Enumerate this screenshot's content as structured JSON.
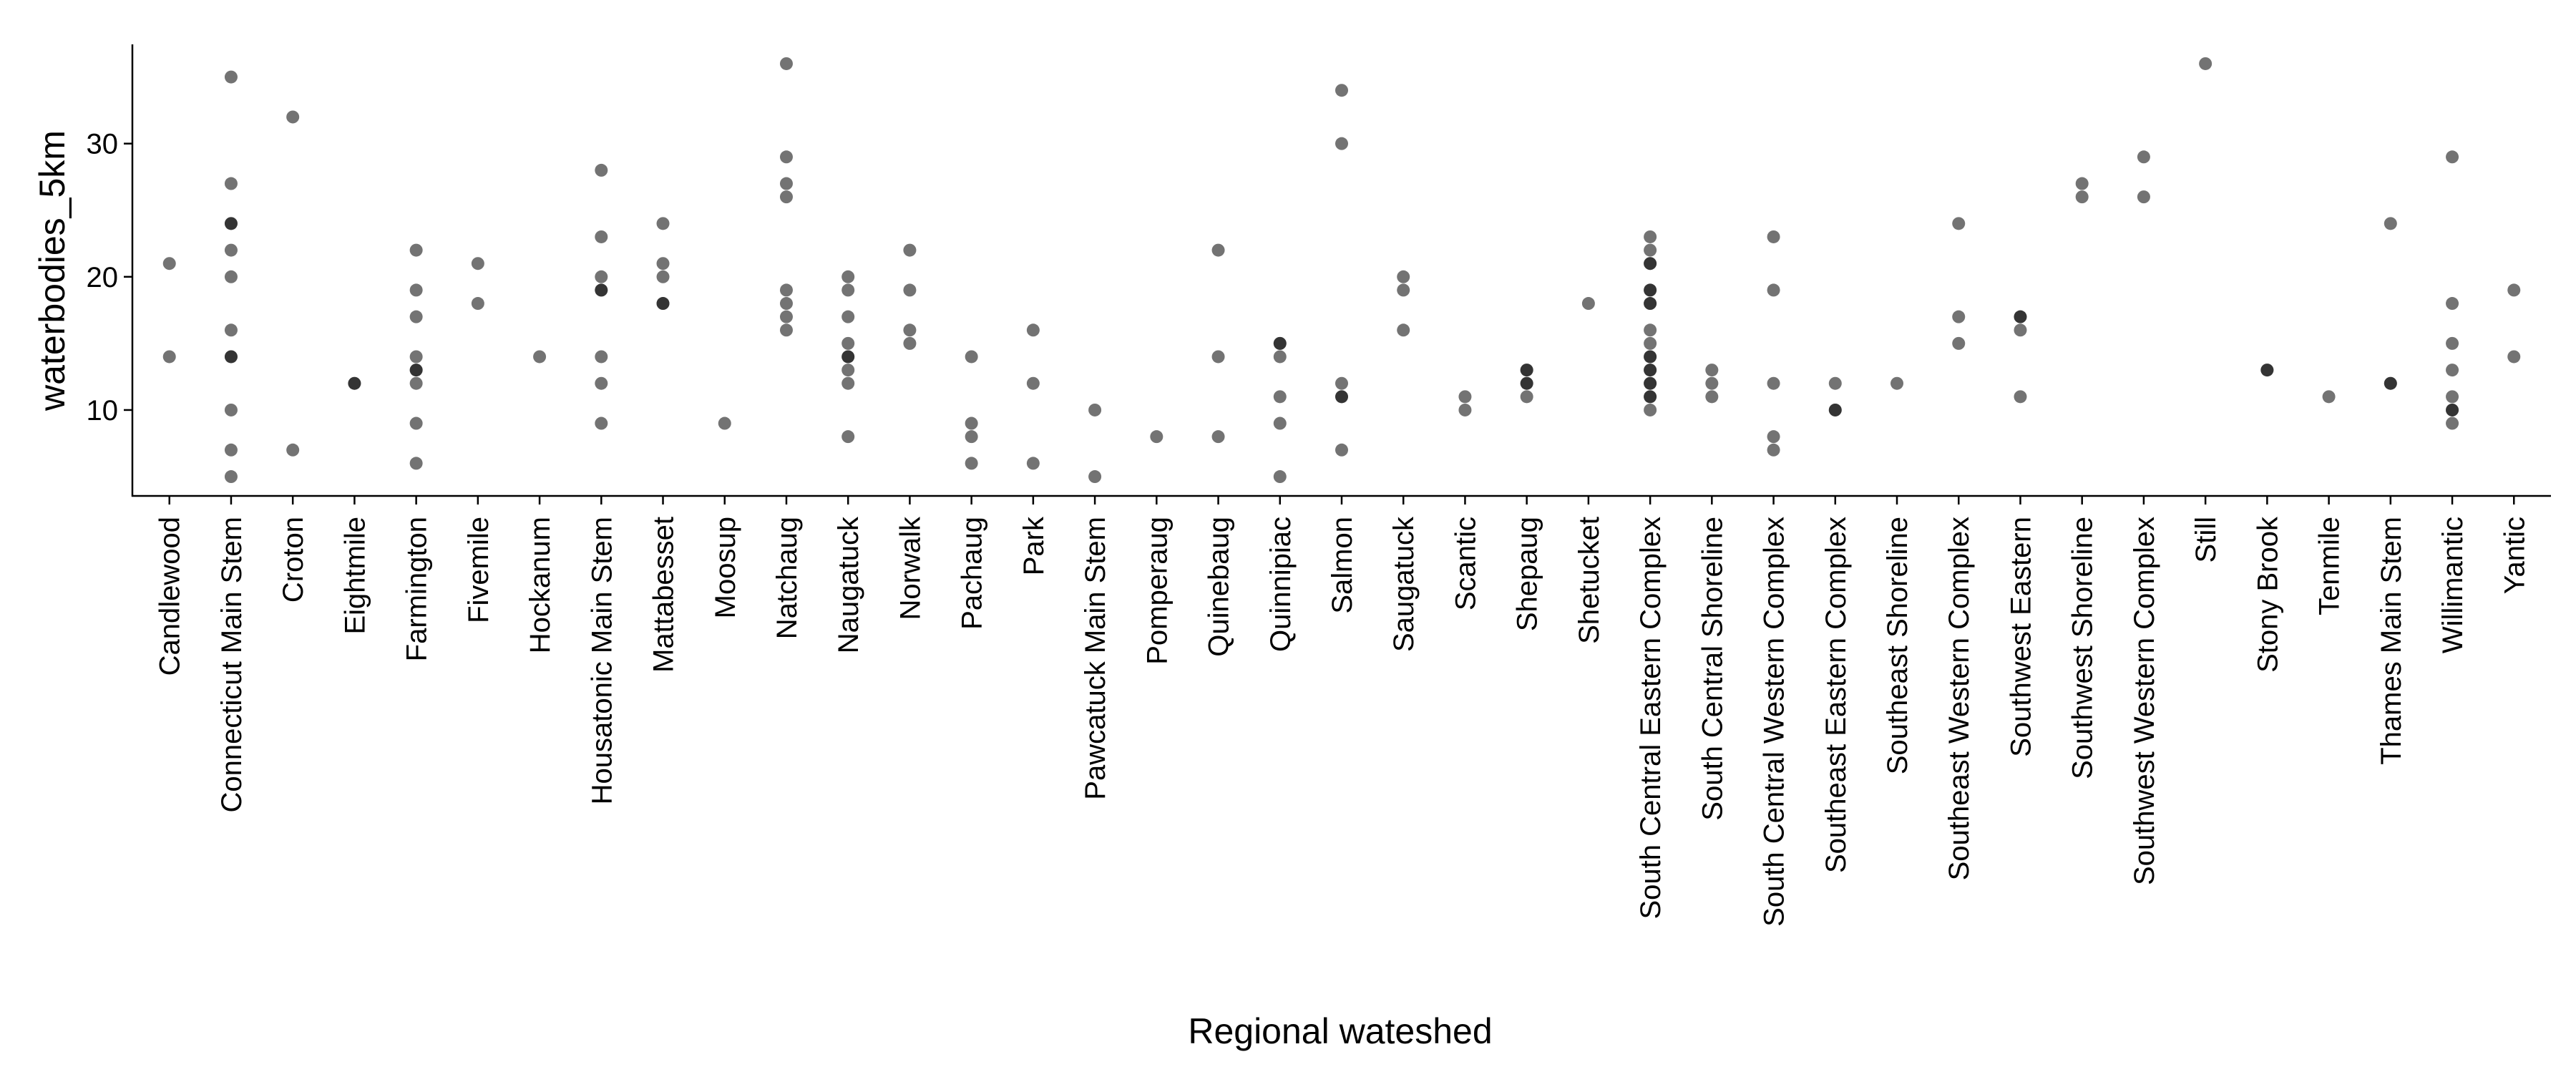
{
  "chart_data": {
    "type": "strip",
    "x_label": "Regional wateshed",
    "y_label": "waterbodies_5km",
    "ylim": [
      3.55,
      37.45
    ],
    "yticks": [
      10,
      20,
      30
    ],
    "color": "#000000",
    "opacity": 0.55,
    "groups": [
      {
        "category": "Candlewood",
        "values": [
          21,
          14
        ]
      },
      {
        "category": "Connecticut Main Stem",
        "values": [
          35,
          27,
          24,
          24,
          22,
          20,
          16,
          14,
          14,
          10,
          7,
          5
        ]
      },
      {
        "category": "Croton",
        "values": [
          32,
          7
        ]
      },
      {
        "category": "Eightmile",
        "values": [
          12,
          12
        ]
      },
      {
        "category": "Farmington",
        "values": [
          22,
          19,
          17,
          14,
          13,
          13,
          12,
          9,
          6
        ]
      },
      {
        "category": "Fivemile",
        "values": [
          21,
          18
        ]
      },
      {
        "category": "Hockanum",
        "values": [
          14
        ]
      },
      {
        "category": "Housatonic Main Stem",
        "values": [
          28,
          23,
          20,
          19,
          19,
          14,
          12,
          9
        ]
      },
      {
        "category": "Mattabesset",
        "values": [
          24,
          21,
          20,
          18,
          18
        ]
      },
      {
        "category": "Moosup",
        "values": [
          9
        ]
      },
      {
        "category": "Natchaug",
        "values": [
          36,
          29,
          27,
          26,
          19,
          18,
          17,
          16
        ]
      },
      {
        "category": "Naugatuck",
        "values": [
          20,
          19,
          17,
          15,
          14,
          14,
          13,
          12,
          8
        ]
      },
      {
        "category": "Norwalk",
        "values": [
          22,
          19,
          16,
          15
        ]
      },
      {
        "category": "Pachaug",
        "values": [
          14,
          9,
          8,
          6
        ]
      },
      {
        "category": "Park",
        "values": [
          16,
          12,
          6
        ]
      },
      {
        "category": "Pawcatuck Main Stem",
        "values": [
          10,
          5
        ]
      },
      {
        "category": "Pomperaug",
        "values": [
          8
        ]
      },
      {
        "category": "Quinebaug",
        "values": [
          22,
          14,
          8
        ]
      },
      {
        "category": "Quinnipiac",
        "values": [
          15,
          15,
          14,
          11,
          9,
          5
        ]
      },
      {
        "category": "Salmon",
        "values": [
          34,
          30,
          12,
          11,
          11,
          7
        ]
      },
      {
        "category": "Saugatuck",
        "values": [
          20,
          19,
          16
        ]
      },
      {
        "category": "Scantic",
        "values": [
          11,
          10
        ]
      },
      {
        "category": "Shepaug",
        "values": [
          13,
          13,
          12,
          12,
          11
        ]
      },
      {
        "category": "Shetucket",
        "values": [
          18
        ]
      },
      {
        "category": "South Central Eastern Complex",
        "values": [
          23,
          22,
          21,
          21,
          19,
          19,
          18,
          18,
          16,
          15,
          14,
          14,
          13,
          13,
          12,
          12,
          11,
          11,
          10
        ]
      },
      {
        "category": "South Central Shoreline",
        "values": [
          13,
          12,
          11
        ]
      },
      {
        "category": "South Central Western Complex",
        "values": [
          23,
          19,
          12,
          8,
          7
        ]
      },
      {
        "category": "Southeast Eastern Complex",
        "values": [
          12,
          10,
          10
        ]
      },
      {
        "category": "Southeast Shoreline",
        "values": [
          12
        ]
      },
      {
        "category": "Southeast Western Complex",
        "values": [
          24,
          17,
          15
        ]
      },
      {
        "category": "Southwest Eastern",
        "values": [
          17,
          17,
          16,
          11
        ]
      },
      {
        "category": "Southwest Shoreline",
        "values": [
          27,
          26
        ]
      },
      {
        "category": "Southwest Western Complex",
        "values": [
          29,
          26
        ]
      },
      {
        "category": "Still",
        "values": [
          36
        ]
      },
      {
        "category": "Stony Brook",
        "values": [
          13,
          13
        ]
      },
      {
        "category": "Tenmile",
        "values": [
          11
        ]
      },
      {
        "category": "Thames Main Stem",
        "values": [
          24,
          12,
          12
        ]
      },
      {
        "category": "Willimantic",
        "values": [
          29,
          18,
          15,
          13,
          11,
          10,
          10,
          9
        ]
      },
      {
        "category": "Yantic",
        "values": [
          19,
          14
        ]
      }
    ]
  }
}
